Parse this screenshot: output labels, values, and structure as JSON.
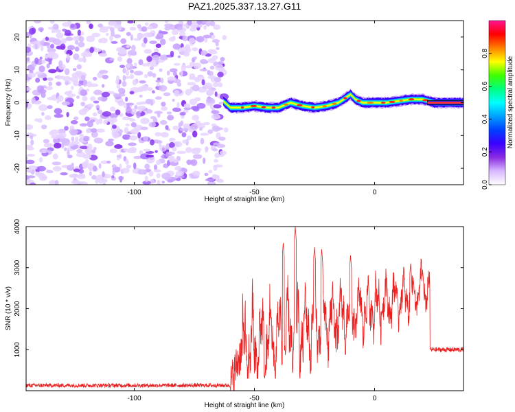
{
  "title": "PAZ1.2025.337.13.27.G11",
  "chart_data": [
    {
      "type": "heatmap",
      "xlabel": "Height of straight line (km)",
      "ylabel": "Frequency (Hz)",
      "xlim": [
        -145,
        37
      ],
      "ylim": [
        -25,
        25
      ],
      "xticks": [
        -100,
        -50,
        0
      ],
      "xtick_labels": [
        "-100",
        "-50",
        "0"
      ],
      "yticks": [
        -20,
        -10,
        0,
        10,
        20
      ],
      "ytick_labels": [
        "-20",
        "-10",
        "0",
        "10",
        "20"
      ],
      "colorbar": {
        "label": "Normalized spectral amplitude",
        "range": [
          0,
          1
        ],
        "ticks": [
          0.0,
          0.2,
          0.4,
          0.6,
          0.8
        ],
        "tick_labels": [
          "0.0",
          "0.2",
          "0.4",
          "0.6",
          "0.8"
        ],
        "colormap": [
          "#ffffff",
          "#d8b8ff",
          "#8a2be2",
          "#3a00ff",
          "#0040ff",
          "#00a0ff",
          "#00ffff",
          "#00ff80",
          "#40ff00",
          "#ffff00",
          "#ff8000",
          "#ff0000",
          "#ff1493"
        ]
      },
      "noise_region_x": [
        -145,
        -63
      ],
      "signal_track": {
        "x": [
          -63,
          -60,
          -55,
          -50,
          -45,
          -40,
          -35,
          -30,
          -25,
          -20,
          -15,
          -12,
          -10,
          -8,
          -5,
          0,
          5,
          10,
          15,
          20,
          25,
          30,
          37
        ],
        "freq": [
          0.5,
          -1.5,
          -1.5,
          -1.0,
          -1.5,
          -1.5,
          0.0,
          -1.0,
          -1.5,
          -1.0,
          0.0,
          1.5,
          2.5,
          1.0,
          0.0,
          0.0,
          0.0,
          0.5,
          1.0,
          1.0,
          0.0,
          0.0,
          0.0
        ]
      }
    },
    {
      "type": "line",
      "xlabel": "Height of straight line (km)",
      "ylabel": "SNR (10 * v/v)",
      "xlim": [
        -145,
        37
      ],
      "ylim": [
        0,
        4000
      ],
      "xticks": [
        -100,
        -50,
        0
      ],
      "xtick_labels": [
        "-100",
        "-50",
        "0"
      ],
      "yticks": [
        1000,
        2000,
        3000,
        4000
      ],
      "ytick_labels": [
        "1000",
        "2000",
        "3000",
        "4000"
      ],
      "line_color": "#e82020",
      "series": [
        {
          "name": "SNR",
          "segments": [
            {
              "x_range": [
                -145,
                -60
              ],
              "level": 130,
              "noise": 50
            },
            {
              "x_range": [
                -60,
                -55
              ],
              "level": 600,
              "noise": 500
            },
            {
              "x_range": [
                -55,
                23
              ],
              "base_start": 1000,
              "base_end": 2500,
              "swing": 1400
            },
            {
              "x_range": [
                23,
                37
              ],
              "level": 1000,
              "noise": 60
            }
          ],
          "peaks": [
            {
              "x": -33,
              "y": 4000
            },
            {
              "x": -38,
              "y": 3600
            },
            {
              "x": -25,
              "y": 3500
            },
            {
              "x": -22,
              "y": 3450
            },
            {
              "x": -10,
              "y": 3300
            },
            {
              "x": 15,
              "y": 3100
            },
            {
              "x": 20,
              "y": 2950
            }
          ]
        }
      ]
    }
  ]
}
